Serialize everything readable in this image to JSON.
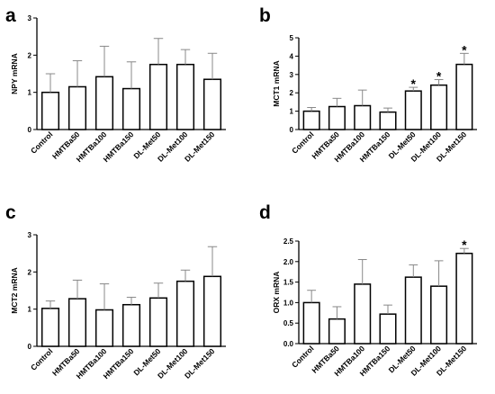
{
  "chart_data": [
    {
      "panel": "a",
      "type": "bar",
      "ylabel": "NPY mRNA",
      "ylim": [
        0,
        3
      ],
      "yticks": [
        "0",
        "1",
        "2",
        "3"
      ],
      "categories": [
        "Control",
        "HMTBa50",
        "HMTBa100",
        "HMTBa150",
        "DL-Met50",
        "DL-Met100",
        "DL-Met150"
      ],
      "values": [
        1.0,
        1.15,
        1.42,
        1.1,
        1.75,
        1.75,
        1.35
      ],
      "errors": [
        0.5,
        0.7,
        0.82,
        0.72,
        0.7,
        0.4,
        0.7
      ],
      "significant": [
        "",
        "",
        "",
        "",
        "",
        "",
        ""
      ]
    },
    {
      "panel": "b",
      "type": "bar",
      "ylabel": "MCT1 mRNA",
      "ylim": [
        0,
        5
      ],
      "yticks": [
        "0",
        "1",
        "2",
        "3",
        "4",
        "5"
      ],
      "categories": [
        "Control",
        "HMTBa50",
        "HMTBa100",
        "HMTBa150",
        "DL-Met50",
        "DL-Met100",
        "DL-Met150"
      ],
      "values": [
        1.0,
        1.25,
        1.3,
        0.95,
        2.1,
        2.42,
        3.55
      ],
      "errors": [
        0.2,
        0.45,
        0.85,
        0.22,
        0.2,
        0.3,
        0.6
      ],
      "significant": [
        "",
        "",
        "",
        "",
        "*",
        "*",
        "*"
      ]
    },
    {
      "panel": "c",
      "type": "bar",
      "ylabel": "MCT2 mRNA",
      "ylim": [
        0,
        3
      ],
      "yticks": [
        "0",
        "1",
        "2",
        "3"
      ],
      "categories": [
        "Control",
        "HMTBa50",
        "HMTBa100",
        "HMTBa150",
        "DL-Met50",
        "DL-Met100",
        "DL-Met150"
      ],
      "values": [
        1.02,
        1.28,
        0.98,
        1.12,
        1.3,
        1.75,
        1.88
      ],
      "errors": [
        0.2,
        0.5,
        0.7,
        0.2,
        0.4,
        0.3,
        0.8
      ],
      "significant": [
        "",
        "",
        "",
        "",
        "",
        "",
        ""
      ]
    },
    {
      "panel": "d",
      "type": "bar",
      "ylabel": "ORX mRNA",
      "ylim": [
        0,
        2.5
      ],
      "yticks": [
        "0.0",
        "0.5",
        "1.0",
        "1.5",
        "2.0",
        "2.5"
      ],
      "categories": [
        "Control",
        "HMTBa50",
        "HMTBa100",
        "HMTBa150",
        "DL-Met50",
        "DL-Met100",
        "DL-Met150"
      ],
      "values": [
        1.0,
        0.6,
        1.45,
        0.72,
        1.62,
        1.4,
        2.2
      ],
      "errors": [
        0.3,
        0.3,
        0.6,
        0.22,
        0.3,
        0.62,
        0.12
      ],
      "significant": [
        "",
        "",
        "",
        "",
        "",
        "",
        "*"
      ]
    }
  ]
}
